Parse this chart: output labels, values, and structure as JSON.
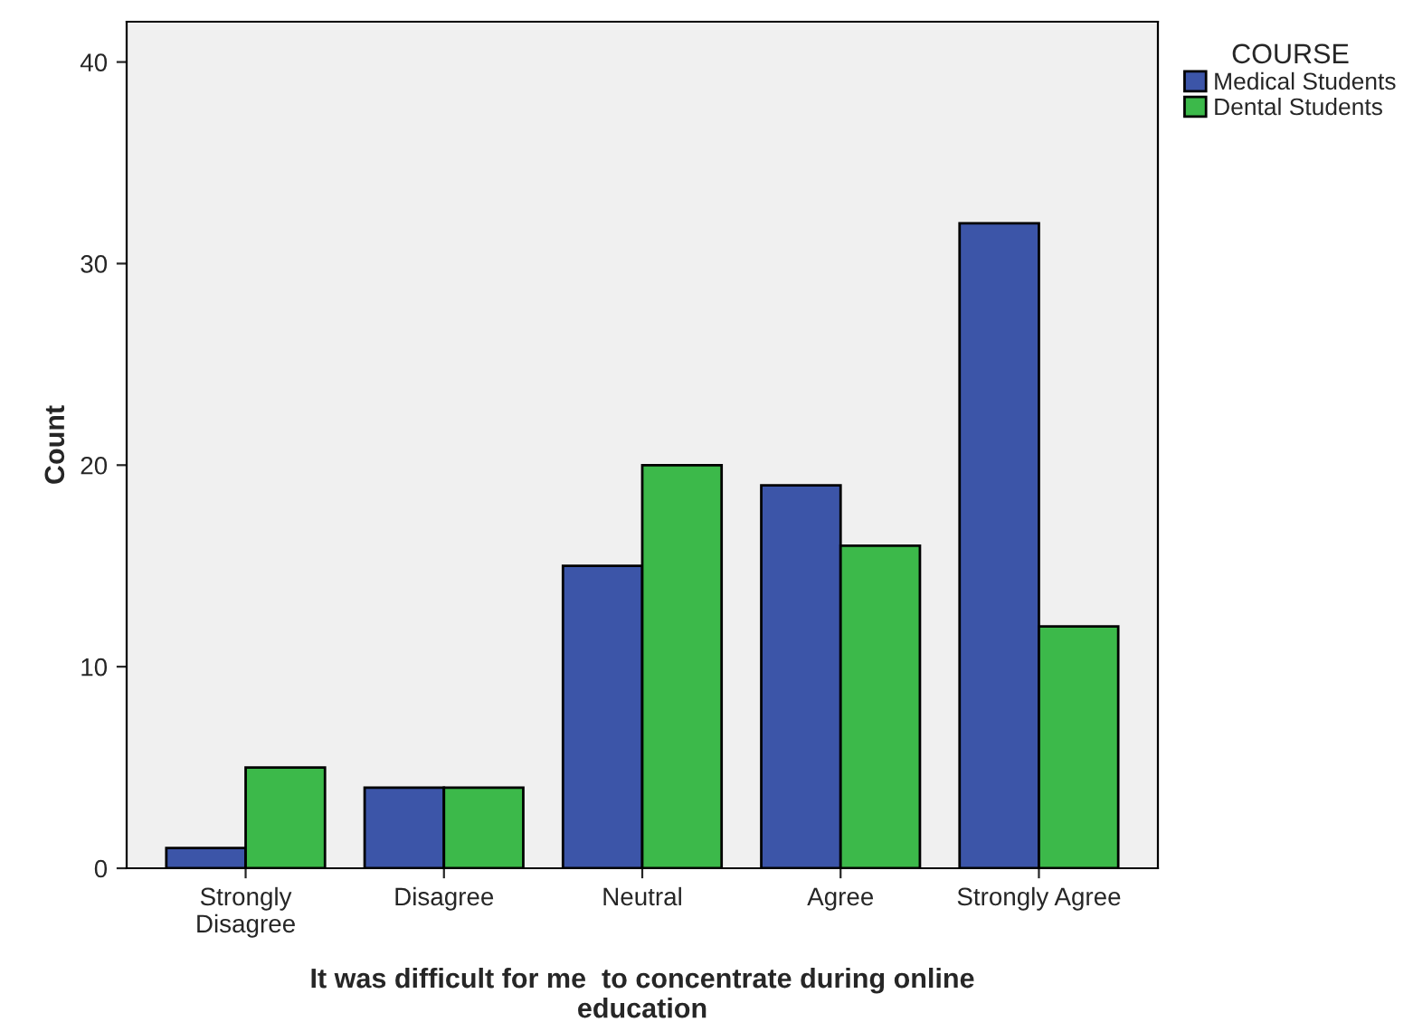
{
  "chart_data": {
    "type": "bar",
    "xlabel": "It was difficult for me  to concentrate during online\neducation",
    "ylabel": "Count",
    "legend_title": "COURSE",
    "legend": "right",
    "grid": false,
    "categories": [
      "Strongly\nDisagree",
      "Disagree",
      "Neutral",
      "Agree",
      "Strongly Agree"
    ],
    "ylim": [
      0,
      42
    ],
    "yticks": [
      0,
      10,
      20,
      30,
      40
    ],
    "series": [
      {
        "name": "Medical Students",
        "color": "#3c55a8",
        "values": [
          1,
          4,
          15,
          19,
          32
        ]
      },
      {
        "name": "Dental Students",
        "color": "#3cb94a",
        "values": [
          5,
          4,
          20,
          16,
          12
        ]
      }
    ]
  }
}
